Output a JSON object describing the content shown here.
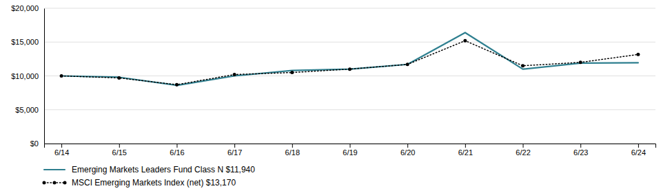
{
  "chart_data": {
    "type": "line",
    "categories": [
      "6/14",
      "6/15",
      "6/16",
      "6/17",
      "6/18",
      "6/19",
      "6/20",
      "6/21",
      "6/22",
      "6/23",
      "6/24"
    ],
    "series": [
      {
        "name": "Emerging Markets Leaders Fund Class N $11,940",
        "color": "#2e7f8f",
        "line_style": "solid",
        "values": [
          10000,
          9800,
          8600,
          10000,
          10800,
          11000,
          11700,
          16400,
          11000,
          11900,
          11940
        ]
      },
      {
        "name": "MSCI Emerging Markets Index (net) $13,170",
        "color": "#000000",
        "line_style": "dotted",
        "marker": "dot",
        "values": [
          10000,
          9700,
          8700,
          10200,
          10500,
          11000,
          11700,
          15200,
          11500,
          12000,
          13170
        ]
      }
    ],
    "ylim": [
      0,
      20000
    ],
    "yticks": [
      {
        "value": 0,
        "label": "$0"
      },
      {
        "value": 5000,
        "label": "$5,000"
      },
      {
        "value": 10000,
        "label": "$10,000"
      },
      {
        "value": 15000,
        "label": "$15,000"
      },
      {
        "value": 20000,
        "label": "$20,000"
      }
    ],
    "grid": true,
    "legend": "bottom"
  }
}
